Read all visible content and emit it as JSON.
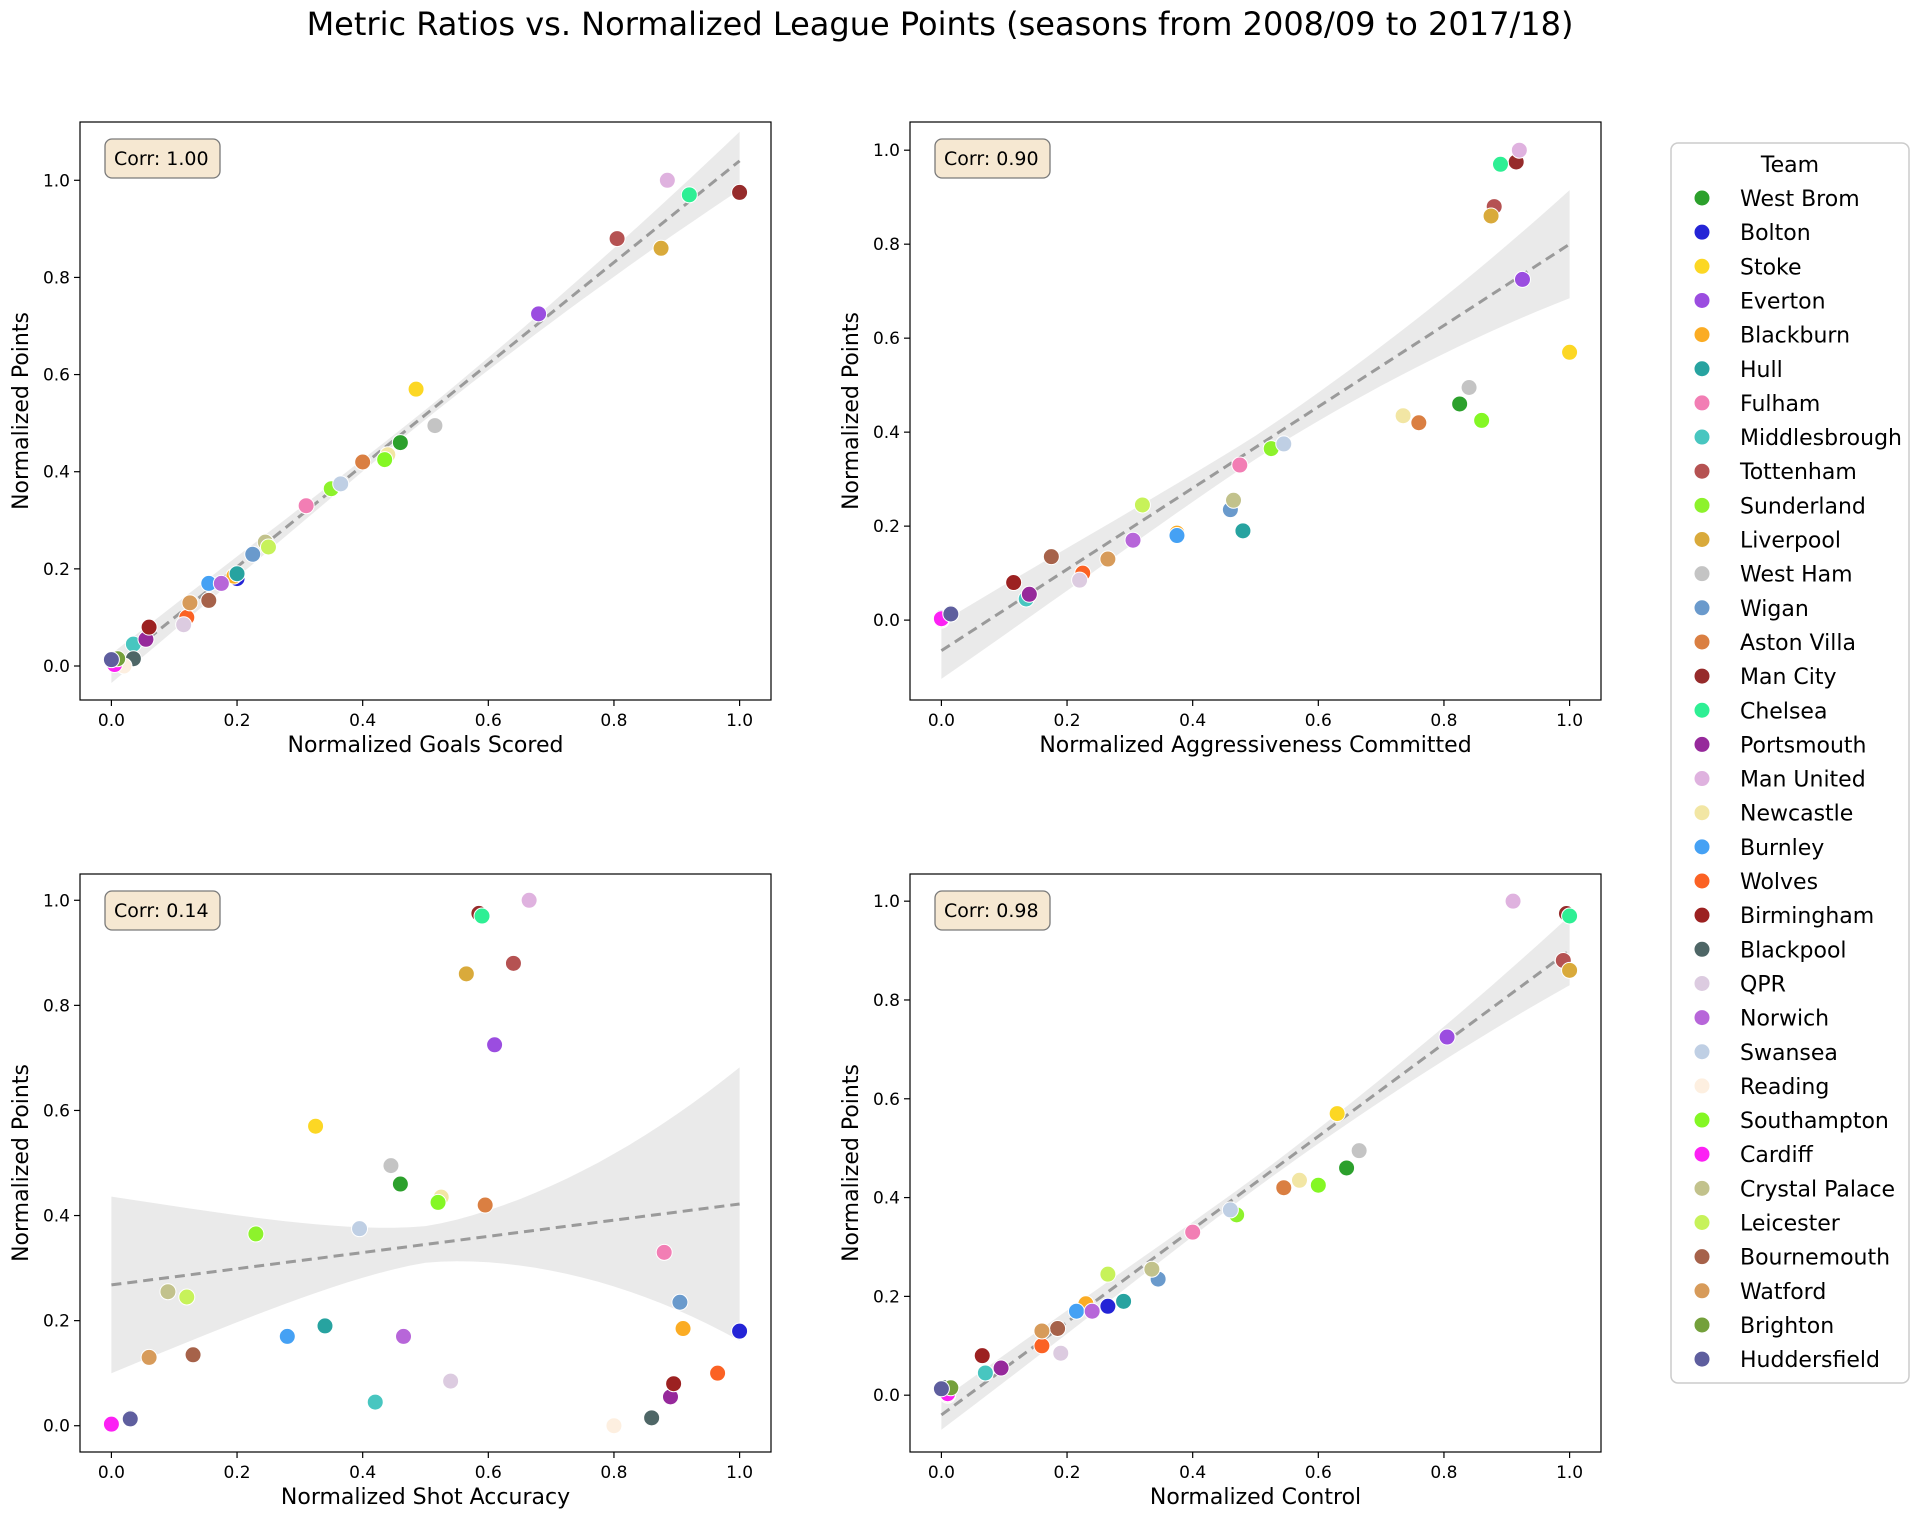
{
  "figure": {
    "title": "Metric Ratios vs. Normalized League Points (seasons from 2008/09 to 2017/18)"
  },
  "legend": {
    "title": "Team",
    "placement": "right",
    "items": [
      {
        "name": "West Brom",
        "color": "#2ca02c"
      },
      {
        "name": "Bolton",
        "color": "#2424d6"
      },
      {
        "name": "Stoke",
        "color": "#fcd724"
      },
      {
        "name": "Everton",
        "color": "#9b4de0"
      },
      {
        "name": "Blackburn",
        "color": "#fbac24"
      },
      {
        "name": "Hull",
        "color": "#27a3a0"
      },
      {
        "name": "Fulham",
        "color": "#f27eb4"
      },
      {
        "name": "Middlesbrough",
        "color": "#48c6c0"
      },
      {
        "name": "Tottenham",
        "color": "#b55252"
      },
      {
        "name": "Sunderland",
        "color": "#8df22c"
      },
      {
        "name": "Liverpool",
        "color": "#d9aa3b"
      },
      {
        "name": "West Ham",
        "color": "#c4c4c4"
      },
      {
        "name": "Wigan",
        "color": "#6a9acc"
      },
      {
        "name": "Aston Villa",
        "color": "#da7f42"
      },
      {
        "name": "Man City",
        "color": "#962b2b"
      },
      {
        "name": "Chelsea",
        "color": "#2eef94"
      },
      {
        "name": "Portsmouth",
        "color": "#96299b"
      },
      {
        "name": "Man United",
        "color": "#dfb2df"
      },
      {
        "name": "Newcastle",
        "color": "#f2e6a4"
      },
      {
        "name": "Burnley",
        "color": "#45a1f4"
      },
      {
        "name": "Wolves",
        "color": "#fb6224"
      },
      {
        "name": "Birmingham",
        "color": "#9c2121"
      },
      {
        "name": "Blackpool",
        "color": "#4e6666"
      },
      {
        "name": "QPR",
        "color": "#dccbe0"
      },
      {
        "name": "Norwich",
        "color": "#b766d9"
      },
      {
        "name": "Swansea",
        "color": "#bfcfe4"
      },
      {
        "name": "Reading",
        "color": "#fdefe0"
      },
      {
        "name": "Southampton",
        "color": "#84f724"
      },
      {
        "name": "Cardiff",
        "color": "#fc21f4"
      },
      {
        "name": "Crystal Palace",
        "color": "#c2c28c"
      },
      {
        "name": "Leicester",
        "color": "#c7f25a"
      },
      {
        "name": "Bournemouth",
        "color": "#a6624a"
      },
      {
        "name": "Watford",
        "color": "#d79b5a"
      },
      {
        "name": "Brighton",
        "color": "#74a03b"
      },
      {
        "name": "Huddersfield",
        "color": "#5e5e9e"
      }
    ]
  },
  "chart_data": [
    {
      "type": "scatter",
      "xlabel": "Normalized Goals Scored",
      "ylabel": "Normalized Points",
      "annotation": "Corr: 1.00",
      "xlim": [
        -0.05,
        1.05
      ],
      "ylim": [
        -0.07,
        1.12
      ],
      "xticks": [
        "0.0",
        "0.2",
        "0.4",
        "0.6",
        "0.8",
        "1.0"
      ],
      "yticks": [
        "0.0",
        "0.2",
        "0.4",
        "0.6",
        "0.8",
        "1.0"
      ],
      "regression": {
        "style": "dashed",
        "x": [
          0.0,
          1.0
        ],
        "y": [
          -0.005,
          1.04
        ],
        "ci": [
          0.03,
          0.06
        ],
        "ci_mid": 0.01
      },
      "points": [
        {
          "team": "West Brom",
          "x": 0.46,
          "y": 0.46
        },
        {
          "team": "Bolton",
          "x": 0.2,
          "y": 0.18
        },
        {
          "team": "Stoke",
          "x": 0.485,
          "y": 0.57
        },
        {
          "team": "Everton",
          "x": 0.68,
          "y": 0.725
        },
        {
          "team": "Blackburn",
          "x": 0.195,
          "y": 0.185
        },
        {
          "team": "Hull",
          "x": 0.2,
          "y": 0.19
        },
        {
          "team": "Fulham",
          "x": 0.31,
          "y": 0.33
        },
        {
          "team": "Middlesbrough",
          "x": 0.035,
          "y": 0.045
        },
        {
          "team": "Tottenham",
          "x": 0.805,
          "y": 0.88
        },
        {
          "team": "Sunderland",
          "x": 0.35,
          "y": 0.365
        },
        {
          "team": "Liverpool",
          "x": 0.875,
          "y": 0.86
        },
        {
          "team": "West Ham",
          "x": 0.515,
          "y": 0.495
        },
        {
          "team": "Wigan",
          "x": 0.225,
          "y": 0.23
        },
        {
          "team": "Aston Villa",
          "x": 0.4,
          "y": 0.42
        },
        {
          "team": "Man City",
          "x": 1.0,
          "y": 0.975
        },
        {
          "team": "Chelsea",
          "x": 0.92,
          "y": 0.97
        },
        {
          "team": "Portsmouth",
          "x": 0.055,
          "y": 0.055
        },
        {
          "team": "Man United",
          "x": 0.885,
          "y": 1.0
        },
        {
          "team": "Newcastle",
          "x": 0.44,
          "y": 0.435
        },
        {
          "team": "Burnley",
          "x": 0.155,
          "y": 0.17
        },
        {
          "team": "Wolves",
          "x": 0.12,
          "y": 0.1
        },
        {
          "team": "Birmingham",
          "x": 0.06,
          "y": 0.08
        },
        {
          "team": "Blackpool",
          "x": 0.035,
          "y": 0.015
        },
        {
          "team": "QPR",
          "x": 0.115,
          "y": 0.085
        },
        {
          "team": "Norwich",
          "x": 0.175,
          "y": 0.17
        },
        {
          "team": "Swansea",
          "x": 0.365,
          "y": 0.375
        },
        {
          "team": "Reading",
          "x": 0.02,
          "y": 0.0
        },
        {
          "team": "Southampton",
          "x": 0.435,
          "y": 0.425
        },
        {
          "team": "Cardiff",
          "x": 0.005,
          "y": 0.003
        },
        {
          "team": "Crystal Palace",
          "x": 0.245,
          "y": 0.255
        },
        {
          "team": "Leicester",
          "x": 0.25,
          "y": 0.245
        },
        {
          "team": "Bournemouth",
          "x": 0.155,
          "y": 0.135
        },
        {
          "team": "Watford",
          "x": 0.125,
          "y": 0.13
        },
        {
          "team": "Brighton",
          "x": 0.01,
          "y": 0.015
        },
        {
          "team": "Huddersfield",
          "x": 0.0,
          "y": 0.013
        }
      ]
    },
    {
      "type": "scatter",
      "xlabel": "Normalized Aggressiveness Committed",
      "ylabel": "Normalized Points",
      "annotation": "Corr: 0.90",
      "xlim": [
        -0.05,
        1.05
      ],
      "ylim": [
        -0.17,
        1.06
      ],
      "xticks": [
        "0.0",
        "0.2",
        "0.4",
        "0.6",
        "0.8",
        "1.0"
      ],
      "yticks": [
        "0.0",
        "0.2",
        "0.4",
        "0.6",
        "0.8",
        "1.0"
      ],
      "regression": {
        "style": "dashed",
        "x": [
          0.0,
          1.0
        ],
        "y": [
          -0.065,
          0.8
        ],
        "ci": [
          0.06,
          0.115
        ],
        "ci_mid": 0.025
      },
      "points": [
        {
          "team": "West Brom",
          "x": 0.825,
          "y": 0.46
        },
        {
          "team": "Bolton",
          "x": 0.0,
          "y": 0.005
        },
        {
          "team": "Stoke",
          "x": 1.0,
          "y": 0.57
        },
        {
          "team": "Everton",
          "x": 0.925,
          "y": 0.725
        },
        {
          "team": "Blackburn",
          "x": 0.375,
          "y": 0.185
        },
        {
          "team": "Hull",
          "x": 0.48,
          "y": 0.19
        },
        {
          "team": "Fulham",
          "x": 0.475,
          "y": 0.33
        },
        {
          "team": "Middlesbrough",
          "x": 0.135,
          "y": 0.045
        },
        {
          "team": "Tottenham",
          "x": 0.88,
          "y": 0.88
        },
        {
          "team": "Sunderland",
          "x": 0.525,
          "y": 0.365
        },
        {
          "team": "Liverpool",
          "x": 0.875,
          "y": 0.86
        },
        {
          "team": "West Ham",
          "x": 0.84,
          "y": 0.495
        },
        {
          "team": "Wigan",
          "x": 0.46,
          "y": 0.235
        },
        {
          "team": "Aston Villa",
          "x": 0.76,
          "y": 0.42
        },
        {
          "team": "Man City",
          "x": 0.915,
          "y": 0.975
        },
        {
          "team": "Chelsea",
          "x": 0.89,
          "y": 0.97
        },
        {
          "team": "Portsmouth",
          "x": 0.14,
          "y": 0.055
        },
        {
          "team": "Man United",
          "x": 0.92,
          "y": 1.0
        },
        {
          "team": "Newcastle",
          "x": 0.735,
          "y": 0.435
        },
        {
          "team": "Burnley",
          "x": 0.375,
          "y": 0.18
        },
        {
          "team": "Wolves",
          "x": 0.225,
          "y": 0.1
        },
        {
          "team": "Birmingham",
          "x": 0.115,
          "y": 0.08
        },
        {
          "team": "Blackpool",
          "x": 0.015,
          "y": 0.015
        },
        {
          "team": "QPR",
          "x": 0.22,
          "y": 0.085
        },
        {
          "team": "Norwich",
          "x": 0.305,
          "y": 0.17
        },
        {
          "team": "Swansea",
          "x": 0.545,
          "y": 0.375
        },
        {
          "team": "Reading",
          "x": 0.0,
          "y": 0.0
        },
        {
          "team": "Southampton",
          "x": 0.86,
          "y": 0.425
        },
        {
          "team": "Cardiff",
          "x": 0.0,
          "y": 0.003
        },
        {
          "team": "Crystal Palace",
          "x": 0.465,
          "y": 0.255
        },
        {
          "team": "Leicester",
          "x": 0.32,
          "y": 0.245
        },
        {
          "team": "Bournemouth",
          "x": 0.175,
          "y": 0.135
        },
        {
          "team": "Watford",
          "x": 0.265,
          "y": 0.13
        },
        {
          "team": "Brighton",
          "x": 0.015,
          "y": 0.015
        },
        {
          "team": "Huddersfield",
          "x": 0.015,
          "y": 0.013
        }
      ]
    },
    {
      "type": "scatter",
      "xlabel": "Normalized Shot Accuracy",
      "ylabel": "Normalized Points",
      "annotation": "Corr: 0.14",
      "xlim": [
        -0.05,
        1.05
      ],
      "ylim": [
        -0.05,
        1.05
      ],
      "xticks": [
        "0.0",
        "0.2",
        "0.4",
        "0.6",
        "0.8",
        "1.0"
      ],
      "yticks": [
        "0.0",
        "0.2",
        "0.4",
        "0.6",
        "0.8",
        "1.0"
      ],
      "regression": {
        "style": "dashed",
        "x": [
          0.0,
          1.0
        ],
        "y": [
          0.268,
          0.422
        ],
        "ci": [
          0.168,
          0.26
        ],
        "ci_mid": 0.035
      },
      "points": [
        {
          "team": "West Brom",
          "x": 0.46,
          "y": 0.46
        },
        {
          "team": "Bolton",
          "x": 1.0,
          "y": 0.18
        },
        {
          "team": "Stoke",
          "x": 0.325,
          "y": 0.57
        },
        {
          "team": "Everton",
          "x": 0.61,
          "y": 0.725
        },
        {
          "team": "Blackburn",
          "x": 0.91,
          "y": 0.185
        },
        {
          "team": "Hull",
          "x": 0.34,
          "y": 0.19
        },
        {
          "team": "Fulham",
          "x": 0.88,
          "y": 0.33
        },
        {
          "team": "Middlesbrough",
          "x": 0.42,
          "y": 0.045
        },
        {
          "team": "Tottenham",
          "x": 0.64,
          "y": 0.88
        },
        {
          "team": "Sunderland",
          "x": 0.23,
          "y": 0.365
        },
        {
          "team": "Liverpool",
          "x": 0.565,
          "y": 0.86
        },
        {
          "team": "West Ham",
          "x": 0.445,
          "y": 0.495
        },
        {
          "team": "Wigan",
          "x": 0.905,
          "y": 0.235
        },
        {
          "team": "Aston Villa",
          "x": 0.595,
          "y": 0.42
        },
        {
          "team": "Man City",
          "x": 0.585,
          "y": 0.975
        },
        {
          "team": "Chelsea",
          "x": 0.59,
          "y": 0.97
        },
        {
          "team": "Portsmouth",
          "x": 0.89,
          "y": 0.055
        },
        {
          "team": "Man United",
          "x": 0.665,
          "y": 1.0
        },
        {
          "team": "Newcastle",
          "x": 0.525,
          "y": 0.435
        },
        {
          "team": "Burnley",
          "x": 0.28,
          "y": 0.17
        },
        {
          "team": "Wolves",
          "x": 0.965,
          "y": 0.1
        },
        {
          "team": "Birmingham",
          "x": 0.895,
          "y": 0.08
        },
        {
          "team": "Blackpool",
          "x": 0.86,
          "y": 0.015
        },
        {
          "team": "QPR",
          "x": 0.54,
          "y": 0.085
        },
        {
          "team": "Norwich",
          "x": 0.465,
          "y": 0.17
        },
        {
          "team": "Swansea",
          "x": 0.395,
          "y": 0.375
        },
        {
          "team": "Reading",
          "x": 0.8,
          "y": 0.0
        },
        {
          "team": "Southampton",
          "x": 0.52,
          "y": 0.425
        },
        {
          "team": "Cardiff",
          "x": 0.0,
          "y": 0.003
        },
        {
          "team": "Crystal Palace",
          "x": 0.09,
          "y": 0.255
        },
        {
          "team": "Leicester",
          "x": 0.12,
          "y": 0.245
        },
        {
          "team": "Bournemouth",
          "x": 0.13,
          "y": 0.135
        },
        {
          "team": "Watford",
          "x": 0.06,
          "y": 0.13
        },
        {
          "team": "Brighton",
          "x": 0.03,
          "y": 0.015
        },
        {
          "team": "Huddersfield",
          "x": 0.03,
          "y": 0.013
        }
      ]
    },
    {
      "type": "scatter",
      "xlabel": "Normalized Control",
      "ylabel": "Normalized Points",
      "annotation": "Corr: 0.98",
      "xlim": [
        -0.05,
        1.05
      ],
      "ylim": [
        -0.115,
        1.055
      ],
      "xticks": [
        "0.0",
        "0.2",
        "0.4",
        "0.6",
        "0.8",
        "1.0"
      ],
      "yticks": [
        "0.0",
        "0.2",
        "0.4",
        "0.6",
        "0.8",
        "1.0"
      ],
      "regression": {
        "style": "dashed",
        "x": [
          0.0,
          1.0
        ],
        "y": [
          -0.04,
          0.9
        ],
        "ci": [
          0.03,
          0.07
        ],
        "ci_mid": 0.012
      },
      "points": [
        {
          "team": "West Brom",
          "x": 0.645,
          "y": 0.46
        },
        {
          "team": "Bolton",
          "x": 0.265,
          "y": 0.18
        },
        {
          "team": "Stoke",
          "x": 0.63,
          "y": 0.57
        },
        {
          "team": "Everton",
          "x": 0.805,
          "y": 0.725
        },
        {
          "team": "Blackburn",
          "x": 0.23,
          "y": 0.185
        },
        {
          "team": "Hull",
          "x": 0.29,
          "y": 0.19
        },
        {
          "team": "Fulham",
          "x": 0.4,
          "y": 0.33
        },
        {
          "team": "Middlesbrough",
          "x": 0.07,
          "y": 0.045
        },
        {
          "team": "Tottenham",
          "x": 0.99,
          "y": 0.88
        },
        {
          "team": "Sunderland",
          "x": 0.47,
          "y": 0.365
        },
        {
          "team": "Liverpool",
          "x": 1.0,
          "y": 0.86
        },
        {
          "team": "West Ham",
          "x": 0.665,
          "y": 0.495
        },
        {
          "team": "Wigan",
          "x": 0.345,
          "y": 0.235
        },
        {
          "team": "Aston Villa",
          "x": 0.545,
          "y": 0.42
        },
        {
          "team": "Man City",
          "x": 0.995,
          "y": 0.975
        },
        {
          "team": "Chelsea",
          "x": 1.0,
          "y": 0.97
        },
        {
          "team": "Portsmouth",
          "x": 0.095,
          "y": 0.055
        },
        {
          "team": "Man United",
          "x": 0.91,
          "y": 1.0
        },
        {
          "team": "Newcastle",
          "x": 0.57,
          "y": 0.435
        },
        {
          "team": "Burnley",
          "x": 0.215,
          "y": 0.17
        },
        {
          "team": "Wolves",
          "x": 0.16,
          "y": 0.1
        },
        {
          "team": "Birmingham",
          "x": 0.065,
          "y": 0.08
        },
        {
          "team": "Blackpool",
          "x": 0.005,
          "y": 0.015
        },
        {
          "team": "QPR",
          "x": 0.19,
          "y": 0.085
        },
        {
          "team": "Norwich",
          "x": 0.24,
          "y": 0.17
        },
        {
          "team": "Swansea",
          "x": 0.46,
          "y": 0.375
        },
        {
          "team": "Reading",
          "x": 0.01,
          "y": 0.0
        },
        {
          "team": "Southampton",
          "x": 0.6,
          "y": 0.425
        },
        {
          "team": "Cardiff",
          "x": 0.01,
          "y": 0.003
        },
        {
          "team": "Crystal Palace",
          "x": 0.335,
          "y": 0.255
        },
        {
          "team": "Leicester",
          "x": 0.265,
          "y": 0.245
        },
        {
          "team": "Bournemouth",
          "x": 0.185,
          "y": 0.135
        },
        {
          "team": "Watford",
          "x": 0.16,
          "y": 0.13
        },
        {
          "team": "Brighton",
          "x": 0.015,
          "y": 0.015
        },
        {
          "team": "Huddersfield",
          "x": 0.0,
          "y": 0.013
        }
      ]
    }
  ]
}
